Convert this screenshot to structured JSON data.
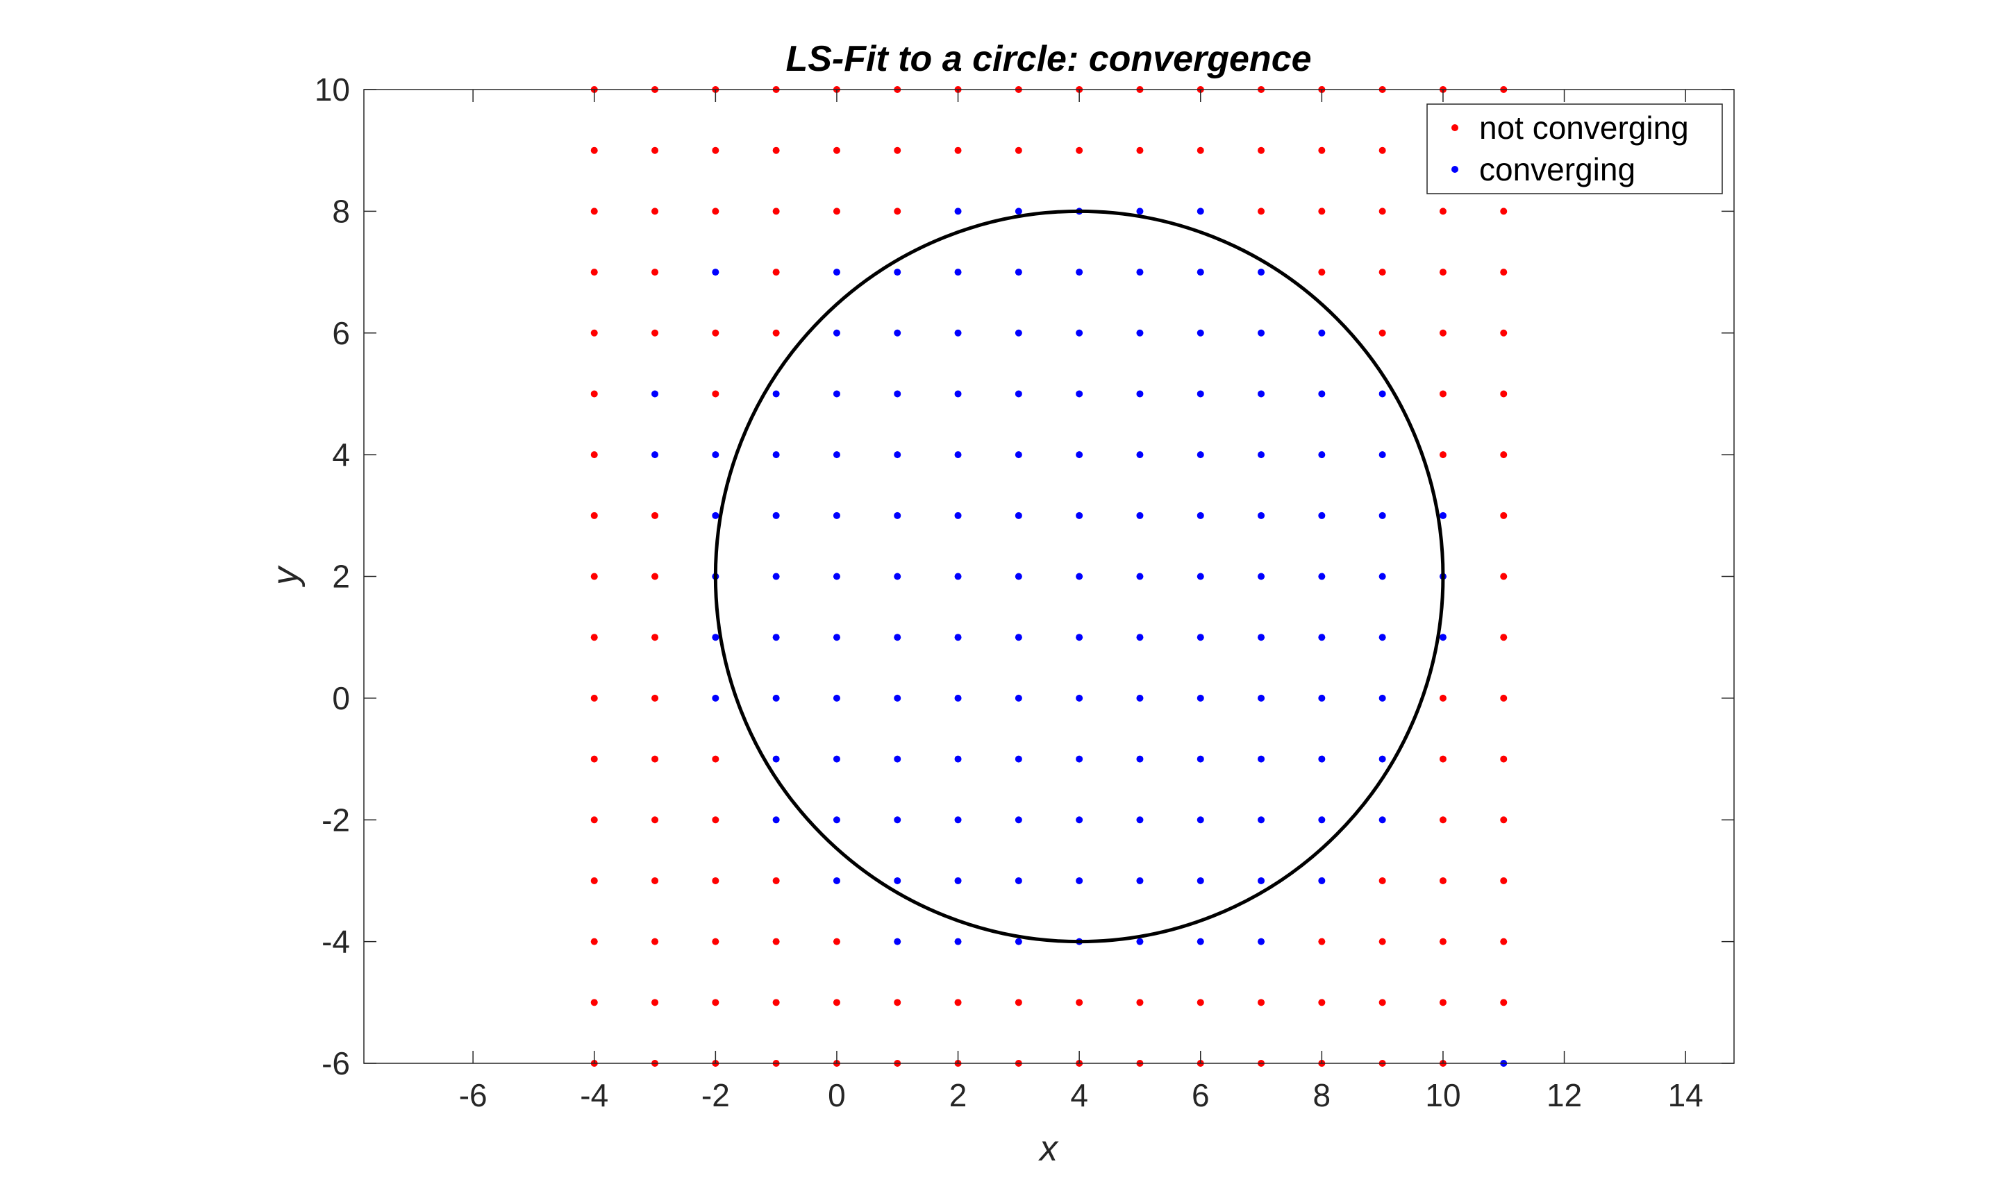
{
  "chart_data": {
    "type": "scatter",
    "title": "LS-Fit to a circle: convergence",
    "xlabel": "x",
    "ylabel": "y",
    "xlim": [
      -7.8,
      14.8
    ],
    "ylim": [
      -6,
      10
    ],
    "xticks": [
      -6,
      -4,
      -2,
      0,
      2,
      4,
      6,
      8,
      10,
      12,
      14
    ],
    "yticks": [
      -6,
      -4,
      -2,
      0,
      2,
      4,
      6,
      8,
      10
    ],
    "grid": false,
    "legend": {
      "position": "top-right",
      "entries": [
        "not converging",
        "converging"
      ]
    },
    "grid_points": {
      "x_range": [
        -4,
        11
      ],
      "y_range": [
        -6,
        10
      ],
      "step": 1
    },
    "circle": {
      "center": [
        4,
        2
      ],
      "radius": 6,
      "color": "#000000"
    },
    "series": [
      {
        "name": "not converging",
        "color": "#ff0000",
        "note_rule": "all grid points not listed as converging"
      },
      {
        "name": "converging",
        "color": "#0000ff",
        "rows": [
          {
            "y": 8,
            "x": [
              2,
              3,
              4,
              5,
              6
            ]
          },
          {
            "y": 7,
            "x": [
              -2,
              0,
              1,
              2,
              3,
              4,
              5,
              6,
              7
            ]
          },
          {
            "y": 6,
            "x": [
              0,
              1,
              2,
              3,
              4,
              5,
              6,
              7,
              8
            ]
          },
          {
            "y": 5,
            "x": [
              -3,
              -1,
              0,
              1,
              2,
              3,
              4,
              5,
              6,
              7,
              8,
              9
            ]
          },
          {
            "y": 4,
            "x": [
              -3,
              -2,
              -1,
              0,
              1,
              2,
              3,
              4,
              5,
              6,
              7,
              8,
              9
            ]
          },
          {
            "y": 3,
            "x": [
              -2,
              -1,
              0,
              1,
              2,
              3,
              4,
              5,
              6,
              7,
              8,
              9,
              10
            ]
          },
          {
            "y": 2,
            "x": [
              -2,
              -1,
              0,
              1,
              2,
              3,
              4,
              5,
              6,
              7,
              8,
              9,
              10
            ]
          },
          {
            "y": 1,
            "x": [
              -2,
              -1,
              0,
              1,
              2,
              3,
              4,
              5,
              6,
              7,
              8,
              9,
              10
            ]
          },
          {
            "y": 0,
            "x": [
              -2,
              -1,
              0,
              1,
              2,
              3,
              4,
              5,
              6,
              7,
              8,
              9
            ]
          },
          {
            "y": -1,
            "x": [
              -1,
              0,
              1,
              2,
              3,
              4,
              5,
              6,
              7,
              8,
              9
            ]
          },
          {
            "y": -2,
            "x": [
              -1,
              0,
              1,
              2,
              3,
              4,
              5,
              6,
              7,
              8,
              9
            ]
          },
          {
            "y": -3,
            "x": [
              0,
              1,
              2,
              3,
              4,
              5,
              6,
              7,
              8
            ]
          },
          {
            "y": -4,
            "x": [
              1,
              2,
              3,
              4,
              5,
              6,
              7
            ]
          },
          {
            "y": -6,
            "x": [
              11
            ]
          }
        ]
      }
    ]
  }
}
